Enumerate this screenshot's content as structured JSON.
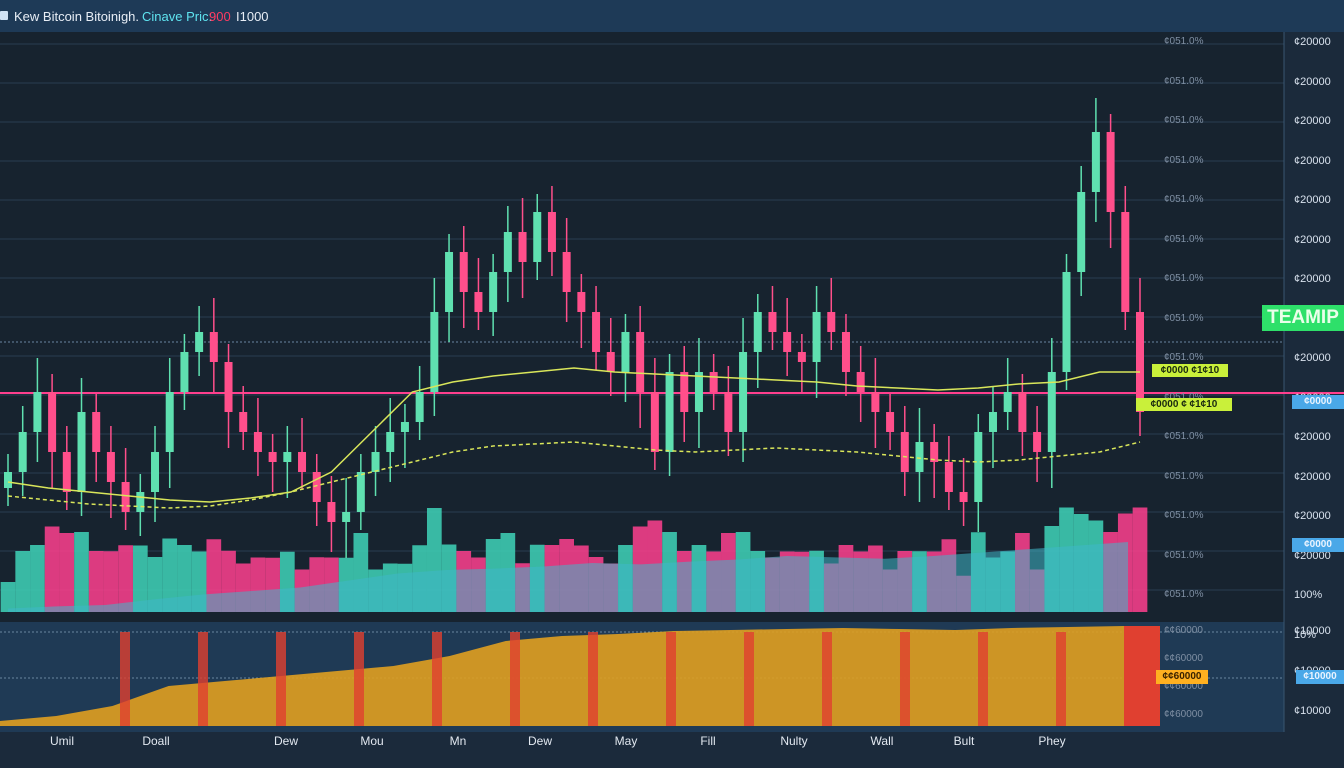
{
  "topbar": {
    "title": "Kew Bitcoin Bitoinigh.",
    "price_label": "Cinave Pric:",
    "price_value": "900",
    "price_unit": "I1000"
  },
  "chart_data": [
    {
      "type": "candlestick",
      "title": "Kew Bitcoin Bitoinigh.",
      "grid": true,
      "x_ticks": [
        "Umil",
        "Doall",
        "Dew",
        "Mou",
        "Mn",
        "Dew",
        "May",
        "Fill",
        "Nulty",
        "Wall",
        "Bult",
        "Phey"
      ],
      "y_ticks_right": [
        "¢20000",
        "¢20000",
        "¢20000",
        "¢20000",
        "¢20000",
        "¢20000",
        "¢20000",
        "¢20000",
        "¢20000",
        "¢20000",
        "¢20000",
        "¢20000",
        "¢20000",
        "¢20000",
        "100%",
        "10%"
      ],
      "y_ticks_inner": [
        "¢051.0%",
        "¢051.0%",
        "¢051.0%",
        "¢051.0%",
        "¢051.0%",
        "¢051.0%",
        "¢051.0%",
        "¢051.0%",
        "¢051.0%",
        "¢051.0%",
        "¢051.0%",
        "¢051.0%",
        "¢051.0%",
        "¢051.0%",
        "¢051.0%"
      ],
      "annotations": [
        "TEAMIP",
        "¢0000 ¢1¢10",
        "¢0000 ¢ ¢1¢10",
        "¢0000",
        "¢0000"
      ],
      "series": [
        {
          "name": "",
          "type": "ohlc",
          "close": [
            20200,
            20400,
            20600,
            20300,
            20100,
            20500,
            20300,
            20150,
            20000,
            20100,
            20300,
            20600,
            20800,
            20900,
            20750,
            20500,
            20400,
            20300,
            20250,
            20300,
            20200,
            20050,
            19950,
            20000,
            20200,
            20300,
            20400,
            20450,
            20600,
            21000,
            21300,
            21100,
            21000,
            21200,
            21400,
            21250,
            21500,
            21300,
            21100,
            21000,
            20800,
            20700,
            20900,
            20600,
            20300,
            20700,
            20500,
            20700,
            20600,
            20400,
            20800,
            21000,
            20900,
            20800,
            20750,
            21000,
            20900,
            20700,
            20600,
            20500,
            20400,
            20200,
            20350,
            20250,
            20100,
            20050,
            20400,
            20500,
            20600,
            20400,
            20300,
            20700,
            21200,
            21600,
            21900,
            21500,
            21000,
            20500
          ]
        },
        {
          "name": "",
          "type": "line",
          "values": [
            20150,
            20120,
            20100,
            20080,
            20060,
            20050,
            20070,
            20100,
            20200,
            20400,
            20600,
            20650,
            20680,
            20700,
            20720,
            20700,
            20690,
            20680,
            20670,
            20660,
            20650,
            20630,
            20620,
            20610,
            20620,
            20640,
            20650,
            20700,
            20700
          ]
        },
        {
          "name": "",
          "type": "line",
          "values": [
            20080,
            20060,
            20040,
            20030,
            20020,
            20030,
            20060,
            20100,
            20150,
            20200,
            20250,
            20300,
            20330,
            20340,
            20350,
            20330,
            20310,
            20300,
            20310,
            20320,
            20310,
            20300,
            20280,
            20260,
            20250,
            20260,
            20280,
            20300,
            20350
          ]
        }
      ]
    },
    {
      "type": "area",
      "y_ticks_right": [
        "10%",
        "10%"
      ],
      "y_ticks_inner": [
        "¢0000"
      ],
      "series": [
        {
          "name": "",
          "values": [
            0.05,
            0.08,
            0.1,
            0.18,
            0.25,
            0.3,
            0.35,
            0.45,
            0.55,
            0.6,
            0.62,
            0.65,
            0.7,
            0.68,
            0.72,
            0.75,
            0.8,
            0.78,
            0.76,
            0.8,
            0.85,
            0.9,
            0.95,
            1.0
          ]
        }
      ]
    },
    {
      "type": "area",
      "y_ticks_right": [
        "¢10000",
        "¢10000",
        "¢10000"
      ],
      "y_ticks_inner": [
        "¢¢60000",
        "¢¢60000",
        "¢¢60000",
        "¢¢60000"
      ],
      "series": [
        {
          "name": "",
          "values": [
            0.05,
            0.1,
            0.2,
            0.4,
            0.45,
            0.5,
            0.55,
            0.6,
            0.7,
            0.85,
            0.9,
            0.92,
            0.95,
            0.96,
            0.97,
            0.98,
            0.97,
            0.96,
            0.98,
            0.99,
            1.0
          ]
        }
      ]
    }
  ],
  "colors": {
    "bull": "#5fe0b0",
    "bear": "#ff4f8b",
    "ma_yellow": "#d9e65a",
    "volume_pink": "#ff3f8e",
    "volume_teal": "#3fd3b8",
    "lower_orange": "#e0a020",
    "lower_red": "#e04030",
    "accent_green": "#2ee06a",
    "accent_blue": "#4aa8e8"
  }
}
